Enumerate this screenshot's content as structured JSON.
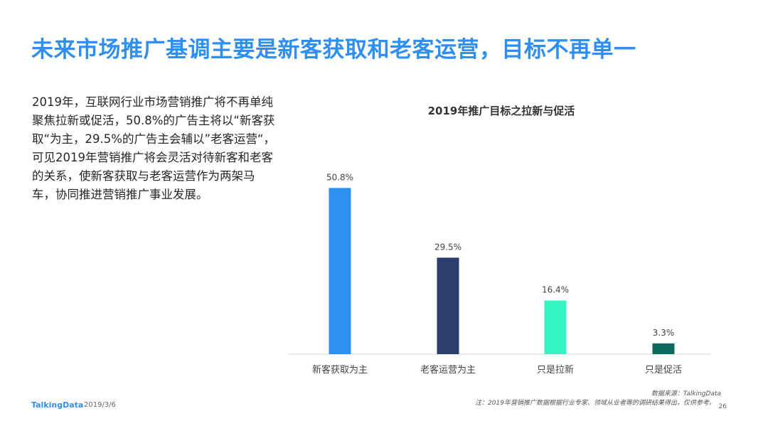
{
  "title": "未来市场推广基调主要是新客获取和老客运营，目标不再单一",
  "paragraph": "2019年，互联网行业市场营销推广将不再单纯聚焦拉新或促活，50.8%的广告主将以“新客获取“为主，29.5%的广告主会辅以”老客运营“，可见2019年营销推广将会灵活对待新客和老客的关系，使新客获取与老客运营作为两架马车，协同推进营销推广事业发展。",
  "footer": {
    "source": "数据来源：TalkingData",
    "note": "注：2019年营销推广数据根据行业专家、领域从业者等的调研结果得出，仅供参考。",
    "page": "26",
    "logo": "TalkingData",
    "date": "2019/3/6"
  },
  "chart_data": {
    "type": "bar",
    "title": "2019年推广目标之拉新与促活",
    "categories": [
      "新客获取为主",
      "老客运营为主",
      "只是拉新",
      "只是促活"
    ],
    "values": [
      50.8,
      29.5,
      16.4,
      3.3
    ],
    "value_labels": [
      "50.8%",
      "29.5%",
      "16.4%",
      "3.3%"
    ],
    "colors": [
      "#2e8ff0",
      "#2c3e6b",
      "#33f5c4",
      "#0e6a5e"
    ],
    "ylim": [
      0,
      55
    ],
    "grid": false,
    "legend": "none"
  }
}
